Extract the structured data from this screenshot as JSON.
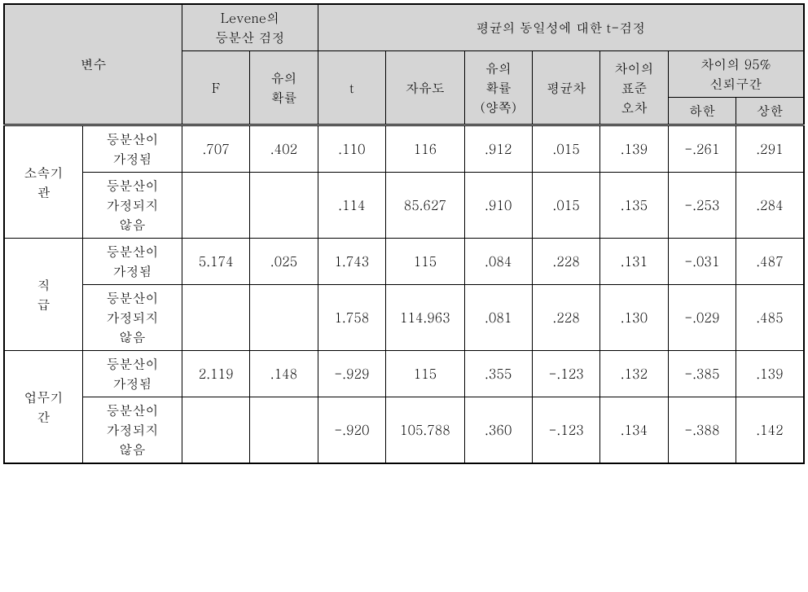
{
  "headers": {
    "variable": "변수",
    "levene_group": "Levene의\n등분산 검정",
    "ttest_group": "평균의 동일성에 대한 t-검정",
    "F": "F",
    "sig": "유의\n확률",
    "t": "t",
    "df": "자유도",
    "sig_two": "유의\n확률\n(양쪽)",
    "mean_diff": "평균차",
    "se_diff": "차이의\n표준\n오차",
    "ci_group": "차이의 95%\n신뢰구간",
    "ci_lower": "하한",
    "ci_upper": "상한"
  },
  "row_labels": {
    "equal_assumed": "등분산이\n가정됨",
    "equal_not_assumed": "등분산이\n가정되지\n않음"
  },
  "groups": [
    {
      "name": "소속기\n관",
      "rows": [
        {
          "F": ".707",
          "sig": ".402",
          "t": ".110",
          "df": "116",
          "sig_two": ".912",
          "mean_diff": ".015",
          "se_diff": ".139",
          "lower": "-.261",
          "upper": ".291"
        },
        {
          "F": "",
          "sig": "",
          "t": ".114",
          "df": "85.627",
          "sig_two": ".910",
          "mean_diff": ".015",
          "se_diff": ".135",
          "lower": "-.253",
          "upper": ".284"
        }
      ]
    },
    {
      "name": "직\n급",
      "rows": [
        {
          "F": "5.174",
          "sig": ".025",
          "t": "1.743",
          "df": "115",
          "sig_two": ".084",
          "mean_diff": ".228",
          "se_diff": ".131",
          "lower": "-.031",
          "upper": ".487"
        },
        {
          "F": "",
          "sig": "",
          "t": "1.758",
          "df": "114.963",
          "sig_two": ".081",
          "mean_diff": ".228",
          "se_diff": ".130",
          "lower": "-.029",
          "upper": ".485"
        }
      ]
    },
    {
      "name": "업무기\n간",
      "rows": [
        {
          "F": "2.119",
          "sig": ".148",
          "t": "-.929",
          "df": "115",
          "sig_two": ".355",
          "mean_diff": "-.123",
          "se_diff": ".132",
          "lower": "-.385",
          "upper": ".139"
        },
        {
          "F": "",
          "sig": "",
          "t": "-.920",
          "df": "105.788",
          "sig_two": ".360",
          "mean_diff": "-.123",
          "se_diff": ".134",
          "lower": "-.388",
          "upper": ".142"
        }
      ]
    }
  ]
}
